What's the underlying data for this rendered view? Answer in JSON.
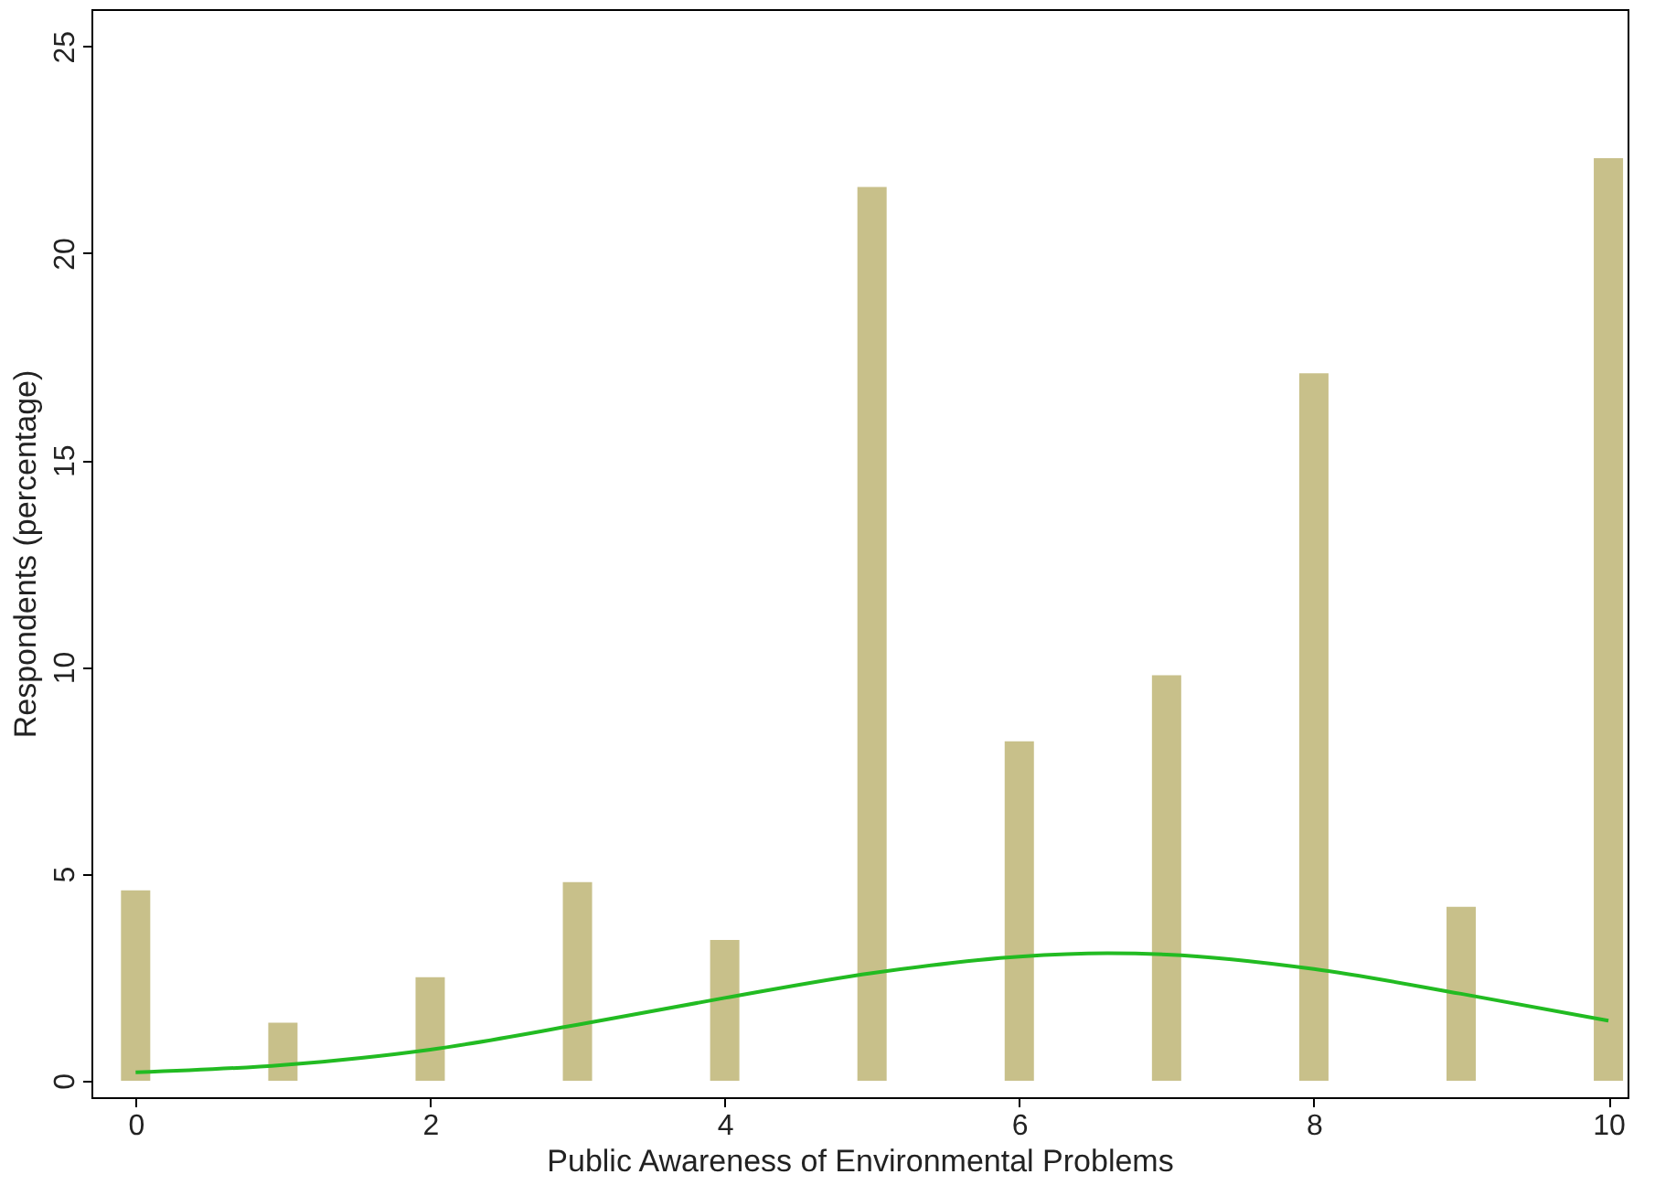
{
  "chart_data": {
    "type": "bar",
    "xlabel": "Public Awareness of Environmental Problems",
    "ylabel": "Respondents (percentage)",
    "xlim": [
      -0.3,
      10.13
    ],
    "xticks": [
      0,
      2,
      4,
      6,
      8,
      10
    ],
    "ylim": [
      -0.4,
      25.9
    ],
    "yticks": [
      0,
      5,
      10,
      15,
      20,
      25
    ],
    "grid": false,
    "series": [
      {
        "color": "#c8c08a",
        "x": [
          0,
          1,
          2,
          3,
          4,
          5,
          6,
          7,
          8,
          9,
          10
        ],
        "values": [
          4.6,
          1.4,
          2.5,
          4.8,
          3.4,
          21.6,
          8.2,
          9.8,
          17.1,
          4.2,
          22.3
        ]
      },
      {
        "type": "line",
        "color": "#22bb22",
        "x": [
          0,
          1,
          2,
          3,
          4,
          5,
          6,
          6.6,
          7,
          8,
          9,
          10
        ],
        "values": [
          0.2,
          0.38,
          0.75,
          1.35,
          2.0,
          2.6,
          3.0,
          3.08,
          3.05,
          2.7,
          2.1,
          1.45
        ]
      }
    ]
  }
}
